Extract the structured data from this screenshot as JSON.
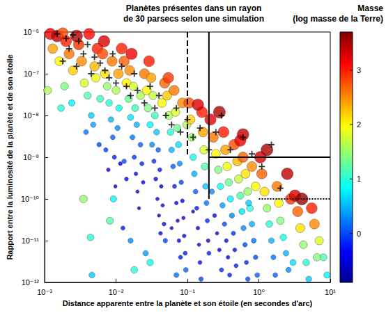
{
  "chart_data": {
    "type": "scatter",
    "title": "Planètes présentes dans un rayon\nde 30 parsecs selon une simulation",
    "x_label": "Distance apparente entre la planète et son étoile (en secondes d'arc)",
    "y_label": "Rapport entre la luminosité de la planète et de son étoile",
    "log": true,
    "grid": false,
    "xlim": [
      0.001,
      10
    ],
    "xticks": [
      {
        "value": 0.001,
        "label": "10⁻³"
      },
      {
        "value": 0.01,
        "label": "10⁻²"
      },
      {
        "value": 0.1,
        "label": "10⁻¹"
      },
      {
        "value": 1,
        "label": "10⁰"
      },
      {
        "value": 10,
        "label": "10¹"
      }
    ],
    "ylim": [
      1e-12,
      1e-06
    ],
    "yticks": [
      {
        "value": 1e-12,
        "label": "10⁻¹²"
      },
      {
        "value": 1e-11,
        "label": "10⁻¹¹"
      },
      {
        "value": 1e-10,
        "label": "10⁻¹⁰"
      },
      {
        "value": 1e-09,
        "label": "10⁻⁹"
      },
      {
        "value": 1e-08,
        "label": "10⁻⁸"
      },
      {
        "value": 1e-07,
        "label": "10⁻⁷"
      },
      {
        "value": 1e-06,
        "label": "10⁻⁶"
      }
    ],
    "colorbar": {
      "label": "Masse\n(log masse de la Terre)",
      "range": [
        -0.9,
        3.7
      ],
      "ticks": [
        0,
        1,
        2,
        3
      ]
    },
    "series": [
      {
        "type": "scatter",
        "marker": "circle",
        "x": [
          0.0012,
          0.0015,
          0.0018,
          0.0013,
          0.0011,
          0.0016,
          0.002,
          0.0022,
          0.0025,
          0.0019,
          0.0028,
          0.0017,
          0.0024,
          0.003,
          0.0033,
          0.0036,
          0.004,
          0.0042,
          0.0045,
          0.0038,
          0.005,
          0.0055,
          0.0048,
          0.0058,
          0.0052,
          0.006,
          0.0035,
          0.0044,
          0.0046,
          0.0065,
          0.007,
          0.0075,
          0.008,
          0.0085,
          0.009,
          0.0095,
          0.0068,
          0.0072,
          0.0078,
          0.0088,
          0.01,
          0.011,
          0.0105,
          0.0115,
          0.0098,
          0.0108,
          0.012,
          0.0092,
          0.0082,
          0.013,
          0.014,
          0.015,
          0.016,
          0.017,
          0.018,
          0.019,
          0.02,
          0.021,
          0.013,
          0.014,
          0.0155,
          0.0165,
          0.0175,
          0.0185,
          0.0195,
          0.022,
          0.023,
          0.024,
          0.0125,
          0.016,
          0.025,
          0.022,
          0.018,
          0.027,
          0.028,
          0.03,
          0.032,
          0.034,
          0.036,
          0.038,
          0.04,
          0.042,
          0.029,
          0.031,
          0.033,
          0.035,
          0.037,
          0.039,
          0.041,
          0.043,
          0.045,
          0.047,
          0.049,
          0.026,
          0.048,
          0.044,
          0.03,
          0.052,
          0.055,
          0.058,
          0.06,
          0.063,
          0.066,
          0.07,
          0.073,
          0.076,
          0.08,
          0.054,
          0.065,
          0.068,
          0.072,
          0.075,
          0.078,
          0.082,
          0.085,
          0.088,
          0.09,
          0.093,
          0.095,
          0.085,
          0.098,
          0.06,
          0.07,
          0.105,
          0.11,
          0.115,
          0.12,
          0.125,
          0.13,
          0.135,
          0.14,
          0.145,
          0.15,
          0.155,
          0.16,
          0.165,
          0.17,
          0.175,
          0.18,
          0.185,
          0.19,
          0.195,
          0.12,
          0.14,
          0.2,
          0.21,
          0.23,
          0.25,
          0.27,
          0.29,
          0.31,
          0.33,
          0.35,
          0.37,
          0.39,
          0.22,
          0.24,
          0.26,
          0.28,
          0.3,
          0.32,
          0.34,
          0.36,
          0.38,
          0.4,
          0.42,
          0.44,
          0.46,
          0.48,
          0.28,
          0.45,
          0.5,
          0.52,
          0.55,
          0.58,
          0.61,
          0.64,
          0.67,
          0.7,
          0.55,
          0.6,
          0.65,
          0.7,
          0.75,
          0.8,
          0.85,
          0.9,
          0.95,
          0.8,
          0.9,
          0.6,
          0.72,
          1.05,
          1.1,
          1.2,
          1.3,
          1.4,
          1.5,
          1.6,
          1.7,
          1.8,
          1.9,
          2.0,
          2.2,
          2.4,
          2.6,
          2.8,
          2.5,
          1.3,
          3.2,
          3.5,
          3.8,
          4.2,
          4.6,
          5,
          5.5,
          6,
          7,
          8,
          9,
          4,
          6.5,
          3
        ],
        "y": [
          9e-07,
          8e-07,
          9.5e-07,
          4e-07,
          4e-08,
          2e-07,
          6e-07,
          3e-07,
          1.2e-07,
          5e-08,
          8e-07,
          1.5e-08,
          2e-08,
          5e-07,
          2e-07,
          6e-08,
          3e-08,
          9e-07,
          1e-08,
          4e-09,
          1.5e-07,
          4e-07,
          6e-09,
          2e-09,
          8e-08,
          2.5e-08,
          1e-10,
          1.2e-11,
          1.5e-12,
          3e-07,
          1e-07,
          5e-08,
          2e-08,
          8e-09,
          3e-09,
          1e-09,
          6e-07,
          1.5e-09,
          5e-10,
          2e-07,
          4e-08,
          1.5e-08,
          5e-09,
          7e-10,
          2e-10,
          1e-07,
          4e-07,
          1e-10,
          3e-11,
          2e-07,
          6e-08,
          2.5e-08,
          9e-09,
          3e-09,
          1e-09,
          4e-10,
          1.5e-10,
          6e-11,
          8e-10,
          3e-10,
          1.2e-07,
          3e-07,
          5e-08,
          1.5e-08,
          6e-09,
          2e-09,
          7e-10,
          2.5e-10,
          2e-11,
          1e-11,
          1e-07,
          3e-08,
          2e-12,
          4e-08,
          1.5e-08,
          6e-09,
          2e-09,
          8e-10,
          3e-10,
          1e-10,
          4e-11,
          1.5e-11,
          2e-07,
          8e-08,
          3e-08,
          1e-08,
          4e-09,
          1.5e-09,
          5e-10,
          2e-10,
          7e-11,
          2.5e-11,
          1e-11,
          5e-12,
          6e-08,
          2e-08,
          3e-12,
          3e-08,
          1e-08,
          4e-09,
          1.5e-09,
          6e-10,
          2e-10,
          8e-11,
          3e-11,
          1e-11,
          4e-12,
          8e-08,
          4e-08,
          1.2e-08,
          5e-09,
          2e-09,
          7e-10,
          2.5e-10,
          9e-11,
          3.5e-11,
          1.3e-11,
          5e-12,
          2e-12,
          2e-08,
          6e-09,
          2e-11,
          1.5e-12,
          2e-08,
          8e-09,
          3e-09,
          1e-09,
          4e-10,
          1.5e-10,
          6e-11,
          2e-11,
          8e-12,
          3e-12,
          1.2e-12,
          1.2e-08,
          4e-09,
          1.5e-09,
          6e-10,
          2e-10,
          8e-11,
          3e-11,
          1e-11,
          5e-11,
          1.8e-08,
          5e-12,
          8e-09,
          3e-09,
          1.2e-09,
          5e-10,
          2e-10,
          7e-11,
          2.5e-11,
          1e-11,
          4e-12,
          1.5e-12,
          1.5e-10,
          4e-11,
          1.5e-11,
          6e-12,
          2e-12,
          4e-09,
          1.5e-09,
          6e-10,
          2.5e-10,
          1e-10,
          4e-11,
          1.5e-11,
          6e-12,
          2.5e-12,
          1.2e-08,
          2e-09,
          8e-10,
          3e-10,
          1.2e-10,
          5e-11,
          2e-11,
          8e-12,
          3e-12,
          1.2e-12,
          2.5e-09,
          1e-09,
          4e-10,
          1.5e-10,
          6e-11,
          2.5e-11,
          1e-11,
          4e-12,
          1.5e-12,
          6e-10,
          2e-10,
          3.5e-09,
          8e-11,
          1e-09,
          4e-10,
          1.5e-10,
          6e-11,
          2.5e-11,
          1e-11,
          4e-12,
          1.5e-12,
          2e-10,
          8e-11,
          3e-11,
          1.2e-11,
          5e-12,
          2e-12,
          1e-10,
          4e-10,
          1.5e-09,
          1.2e-10,
          5e-11,
          2e-11,
          8e-12,
          3e-12,
          1.2e-12,
          6e-11,
          2.5e-11,
          1e-11,
          4e-12,
          1.5e-12,
          1e-10,
          4e-12,
          3e-12
        ],
        "mass": [
          3.2,
          3.4,
          2.8,
          2.4,
          1.6,
          2.0,
          3.0,
          2.6,
          2.2,
          1.4,
          3.5,
          1.0,
          0.8,
          2.9,
          2.5,
          1.8,
          1.2,
          3.1,
          0.6,
          0.2,
          2.3,
          3.0,
          0.4,
          0.0,
          1.9,
          1.1,
          1.5,
          1.0,
          0.6,
          2.8,
          2.1,
          1.5,
          1.0,
          0.5,
          0.1,
          -0.2,
          3.3,
          -0.1,
          -0.4,
          2.6,
          1.6,
          0.9,
          0.3,
          -0.3,
          -0.5,
          2.4,
          3.0,
          0.8,
          1.2,
          2.7,
          2.0,
          1.3,
          0.7,
          0.2,
          -0.1,
          -0.4,
          -0.5,
          -0.6,
          0.0,
          -0.3,
          2.5,
          3.2,
          1.8,
          1.1,
          0.5,
          0.1,
          -0.2,
          -0.4,
          -0.2,
          0.3,
          2.6,
          1.6,
          1.0,
          2.0,
          1.4,
          0.8,
          0.3,
          -0.1,
          -0.3,
          -0.5,
          -0.6,
          -0.4,
          3.0,
          2.4,
          1.7,
          1.1,
          0.6,
          0.1,
          -0.2,
          -0.4,
          -0.5,
          -0.3,
          0.0,
          0.4,
          2.7,
          2.0,
          0.9,
          2.2,
          1.6,
          1.0,
          0.5,
          0.1,
          -0.2,
          -0.4,
          -0.5,
          -0.4,
          -0.2,
          2.9,
          2.6,
          1.8,
          1.3,
          0.7,
          0.3,
          0.0,
          -0.3,
          -0.5,
          -0.4,
          -0.2,
          0.1,
          2.5,
          1.6,
          -0.6,
          0.2,
          2.8,
          2.2,
          1.5,
          0.9,
          0.5,
          0.1,
          -0.2,
          -0.4,
          -0.5,
          -0.3,
          0.0,
          3.0,
          2.4,
          1.8,
          1.2,
          0.6,
          0.2,
          -0.1,
          -0.4,
          -0.6,
          3.3,
          -0.2,
          3.2,
          2.6,
          2.0,
          1.4,
          0.9,
          0.4,
          0.0,
          -0.3,
          -0.4,
          -0.2,
          0.3,
          -0.3,
          -0.5,
          -0.4,
          -0.1,
          3.0,
          2.4,
          1.9,
          1.3,
          0.8,
          0.3,
          -0.1,
          -0.3,
          -0.2,
          3.5,
          2.8,
          2.3,
          1.7,
          1.2,
          0.7,
          0.3,
          0.0,
          -0.2,
          0.0,
          3.2,
          2.7,
          2.1,
          1.5,
          1.0,
          0.5,
          0.2,
          0.0,
          0.1,
          2.5,
          2.0,
          3.4,
          0.6,
          3.3,
          2.7,
          2.1,
          1.5,
          1.0,
          0.5,
          0.2,
          0.1,
          2.6,
          2.0,
          1.4,
          0.9,
          0.5,
          0.3,
          2.9,
          3.4,
          3.5,
          3.3,
          2.7,
          2.1,
          1.5,
          1.0,
          0.6,
          3.0,
          2.5,
          1.8,
          1.2,
          0.8,
          3.6,
          1.4,
          0.7
        ]
      },
      {
        "type": "scatter",
        "marker": "plus",
        "color": "#000000",
        "x": [
          0.0015,
          0.002,
          0.0025,
          0.003,
          0.0022,
          0.0035,
          0.004,
          0.005,
          0.006,
          0.0045,
          0.007,
          0.008,
          0.009,
          0.01,
          0.012,
          0.014,
          0.016,
          0.018,
          0.02,
          0.025,
          0.03,
          0.035,
          0.04,
          0.05,
          0.06,
          0.07,
          0.08,
          0.1,
          0.12,
          0.15,
          0.2,
          0.25,
          0.3,
          0.4,
          0.6,
          0.8,
          1.1,
          1.5,
          2,
          0.0018,
          0.0028
        ],
        "y": [
          9e-07,
          7e-07,
          8.5e-07,
          6e-07,
          4e-07,
          3e-07,
          5e-07,
          2.5e-07,
          1.8e-07,
          1e-07,
          1.2e-07,
          8e-08,
          3e-07,
          6e-08,
          1.5e-07,
          5e-08,
          3e-08,
          1e-07,
          4e-08,
          2e-08,
          5e-08,
          1.5e-08,
          3e-08,
          1e-08,
          6e-09,
          1.5e-08,
          4e-09,
          8e-09,
          3e-09,
          5e-09,
          1.5e-09,
          4e-09,
          1e-08,
          1.5e-09,
          3e-09,
          1.2e-09,
          6e-10,
          2e-09,
          1.8e-10,
          2e-07,
          1.5e-07
        ]
      }
    ],
    "lines": [
      {
        "x": [
          0.1,
          0.1
        ],
        "y": [
          1e-06,
          1e-09
        ],
        "line_style": "dashed"
      },
      {
        "x": [
          0.2,
          0.2
        ],
        "y": [
          1e-06,
          1e-10
        ],
        "line_style": "solid"
      },
      {
        "x": [
          0.2,
          10
        ],
        "y": [
          1e-09,
          1e-09
        ],
        "line_style": "solid"
      },
      {
        "x": [
          1,
          10
        ],
        "y": [
          1e-10,
          1e-10
        ],
        "line_style": "dotted"
      }
    ]
  }
}
